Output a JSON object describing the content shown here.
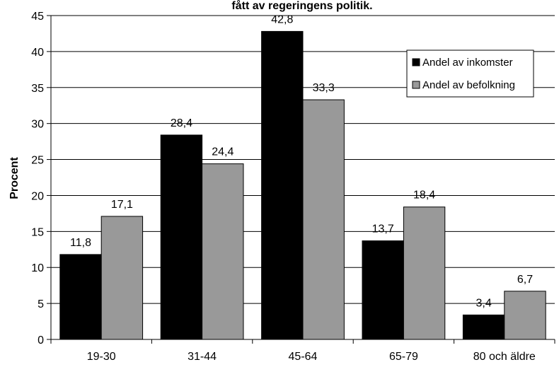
{
  "chart_data": {
    "type": "bar",
    "title": "fått av regeringens politik.",
    "xlabel": "",
    "ylabel": "Procent",
    "ylim": [
      0,
      45
    ],
    "yticks": [
      0,
      5,
      10,
      15,
      20,
      25,
      30,
      35,
      40,
      45
    ],
    "grid": true,
    "legend_position": "top-right",
    "categories": [
      "19-30",
      "31-44",
      "45-64",
      "65-79",
      "80 och äldre"
    ],
    "series": [
      {
        "name": "Andel av inkomster",
        "color": "#000000",
        "values": [
          11.8,
          28.4,
          42.8,
          13.7,
          3.4
        ],
        "labels": [
          "11,8",
          "28,4",
          "42,8",
          "13,7",
          "3,4"
        ]
      },
      {
        "name": "Andel av befolkning",
        "color": "#999999",
        "values": [
          17.1,
          24.4,
          33.3,
          18.4,
          6.7
        ],
        "labels": [
          "17,1",
          "24,4",
          "33,3",
          "18,4",
          "6,7"
        ]
      }
    ]
  }
}
